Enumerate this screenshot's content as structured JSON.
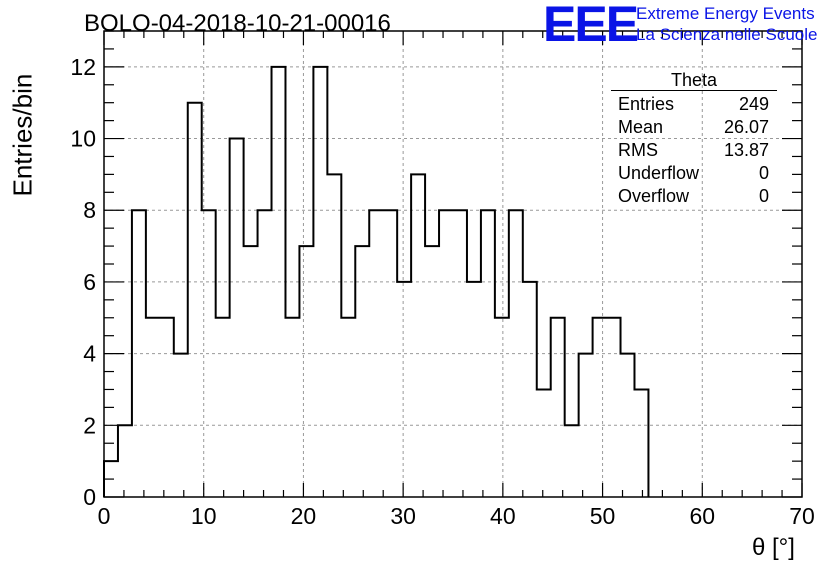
{
  "header": {
    "title": "BOLO-04-2018-10-21-00016",
    "logo": "EEE",
    "logo_line1": "Extreme Energy Events",
    "logo_line2": "La Scienza nelle Scuole"
  },
  "stats_box": {
    "title": "Theta",
    "rows": [
      {
        "label": "Entries",
        "value": "249"
      },
      {
        "label": "Mean",
        "value": "26.07"
      },
      {
        "label": "RMS",
        "value": "13.87"
      },
      {
        "label": "Underflow",
        "value": "0"
      },
      {
        "label": "Overflow",
        "value": "0"
      }
    ]
  },
  "chart_data": {
    "type": "bar",
    "style": "step-histogram",
    "xlabel": "θ [°]",
    "ylabel": "Entries/bin",
    "xlim": [
      0,
      70
    ],
    "ylim": [
      0,
      13
    ],
    "x_ticks": [
      0,
      10,
      20,
      30,
      40,
      50,
      60,
      70
    ],
    "y_ticks": [
      0,
      2,
      4,
      6,
      8,
      10,
      12
    ],
    "grid": true,
    "bin_width": 1.4,
    "bin_start": 0,
    "values": [
      1,
      2,
      8,
      5,
      5,
      4,
      11,
      8,
      5,
      10,
      7,
      8,
      12,
      5,
      7,
      12,
      9,
      5,
      7,
      8,
      8,
      6,
      9,
      7,
      8,
      8,
      6,
      8,
      5,
      8,
      6,
      3,
      5,
      2,
      4,
      5,
      5,
      4,
      3
    ],
    "line_color": "#000000",
    "grid_color": "#999999"
  }
}
